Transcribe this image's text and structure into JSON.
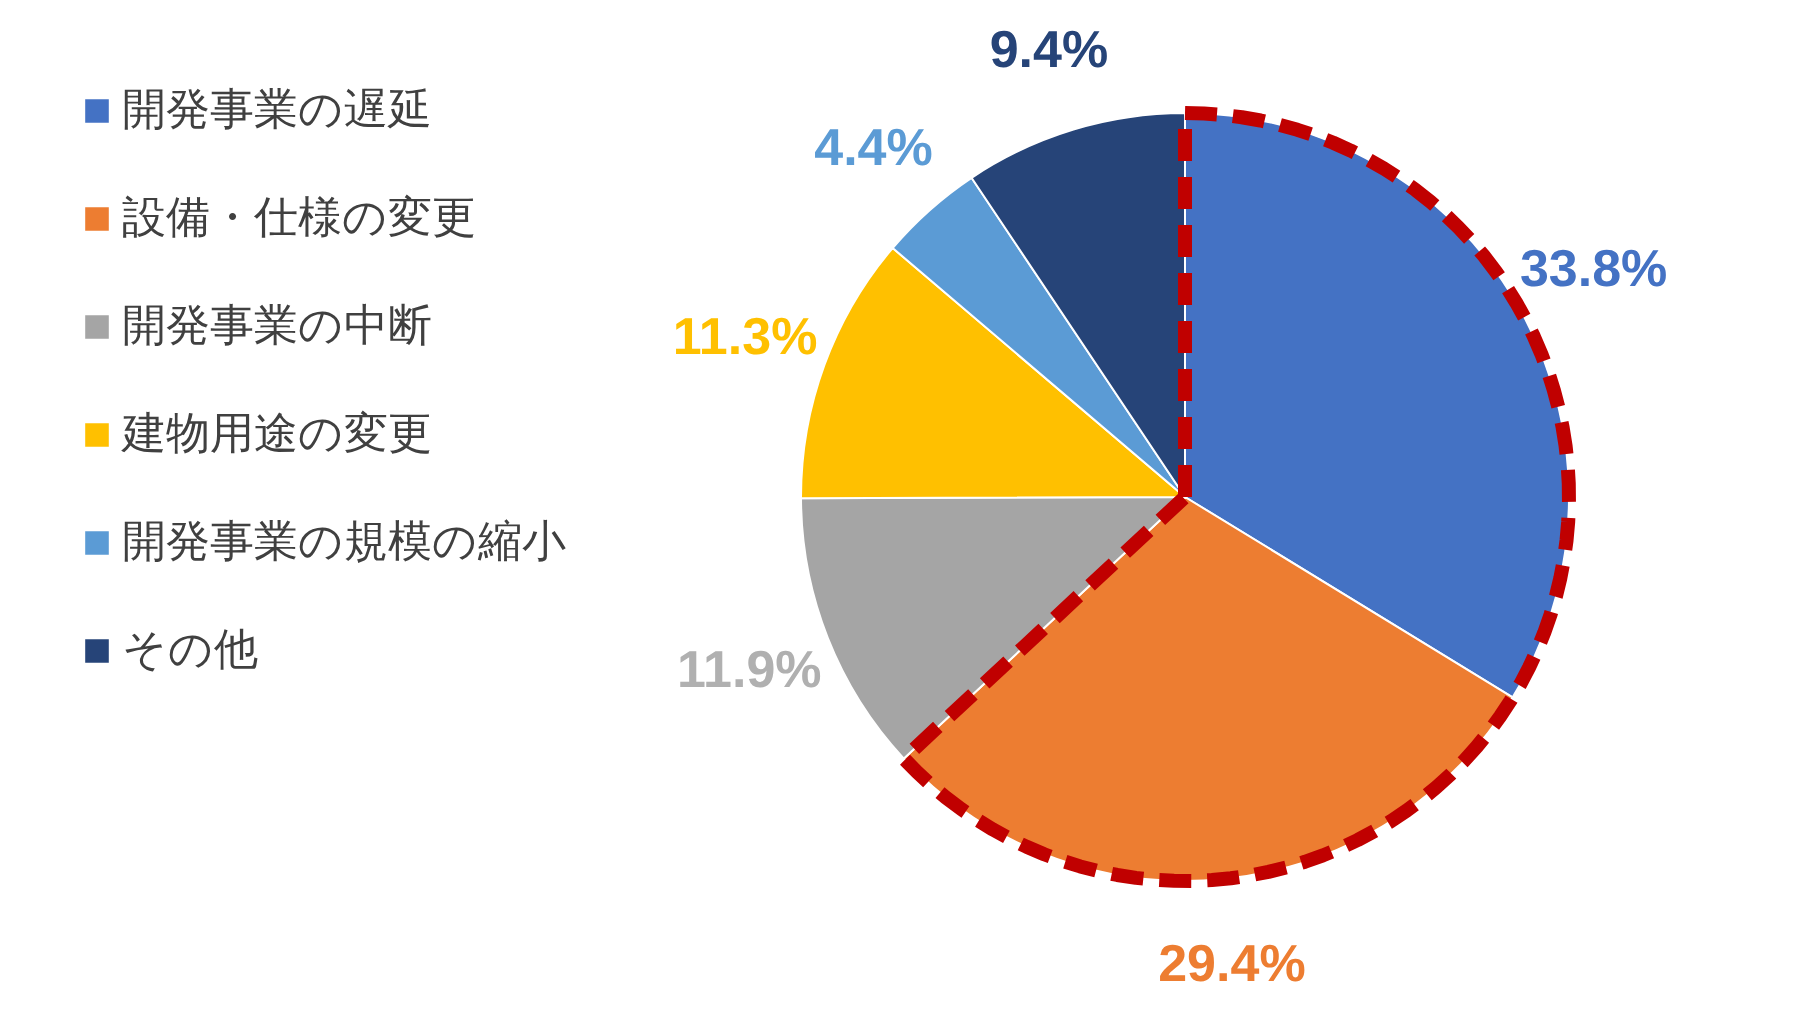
{
  "chart_data": {
    "type": "pie",
    "categories": [
      "開発事業の遅延",
      "設備・仕様の変更",
      "開発事業の中断",
      "建物用途の変更",
      "開発事業の規模の縮小",
      "その他"
    ],
    "values": [
      33.8,
      29.4,
      11.9,
      11.3,
      4.4,
      9.4
    ],
    "colors": [
      "#4472c4",
      "#ed7d31",
      "#a5a5a5",
      "#ffc000",
      "#5b9bd5",
      "#264478"
    ],
    "value_labels": [
      "33.8%",
      "29.4%",
      "11.9%",
      "11.3%",
      "4.4%",
      "9.4%"
    ],
    "legend": "left"
  }
}
